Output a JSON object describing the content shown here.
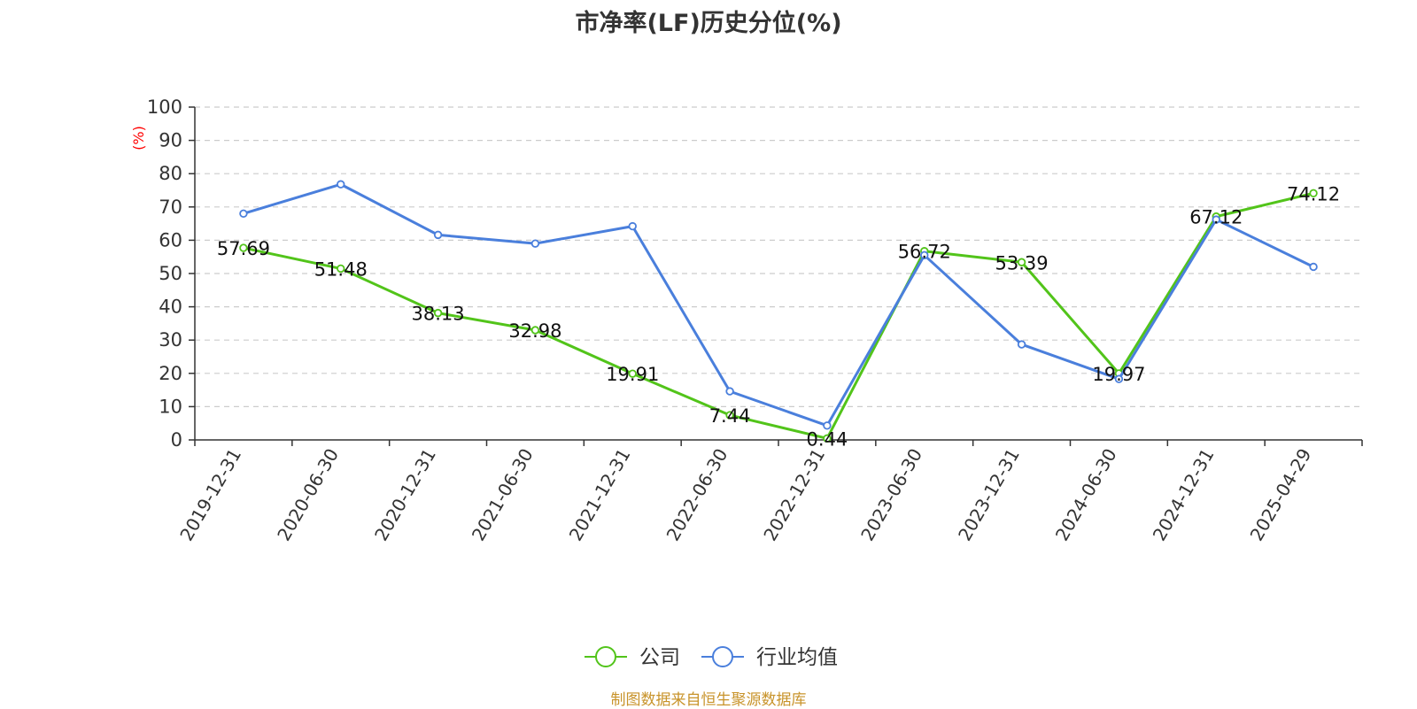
{
  "chart_data": {
    "type": "line",
    "title": "市净率(LF)历史分位(%)",
    "ylabel": "(%)",
    "xlabel": "",
    "categories": [
      "2019-12-31",
      "2020-06-30",
      "2020-12-31",
      "2021-06-30",
      "2021-12-31",
      "2022-06-30",
      "2022-12-31",
      "2023-06-30",
      "2023-12-31",
      "2024-06-30",
      "2024-12-31",
      "2025-04-29"
    ],
    "ylim": [
      0,
      100
    ],
    "yticks": [
      0,
      10,
      20,
      30,
      40,
      50,
      60,
      70,
      80,
      90,
      100
    ],
    "grid": true,
    "legend_position": "bottom",
    "series": [
      {
        "name": "公司",
        "color": "#52c41a",
        "values": [
          57.69,
          51.48,
          38.13,
          32.98,
          19.91,
          7.44,
          0.44,
          56.72,
          53.39,
          19.97,
          67.12,
          74.12
        ],
        "labels": [
          "57.69",
          "51.48",
          "38.13",
          "32.98",
          "19.91",
          "7.44",
          "0.44",
          "56.72",
          "53.39",
          "19.97",
          "67.12",
          "74.12"
        ]
      },
      {
        "name": "行业均值",
        "color": "#4a7fdc",
        "values": [
          68.0,
          76.8,
          61.6,
          59.0,
          64.2,
          14.6,
          4.3,
          55.5,
          28.7,
          18.3,
          66.2,
          52.0
        ]
      }
    ],
    "source": "制图数据来自恒生聚源数据库"
  }
}
